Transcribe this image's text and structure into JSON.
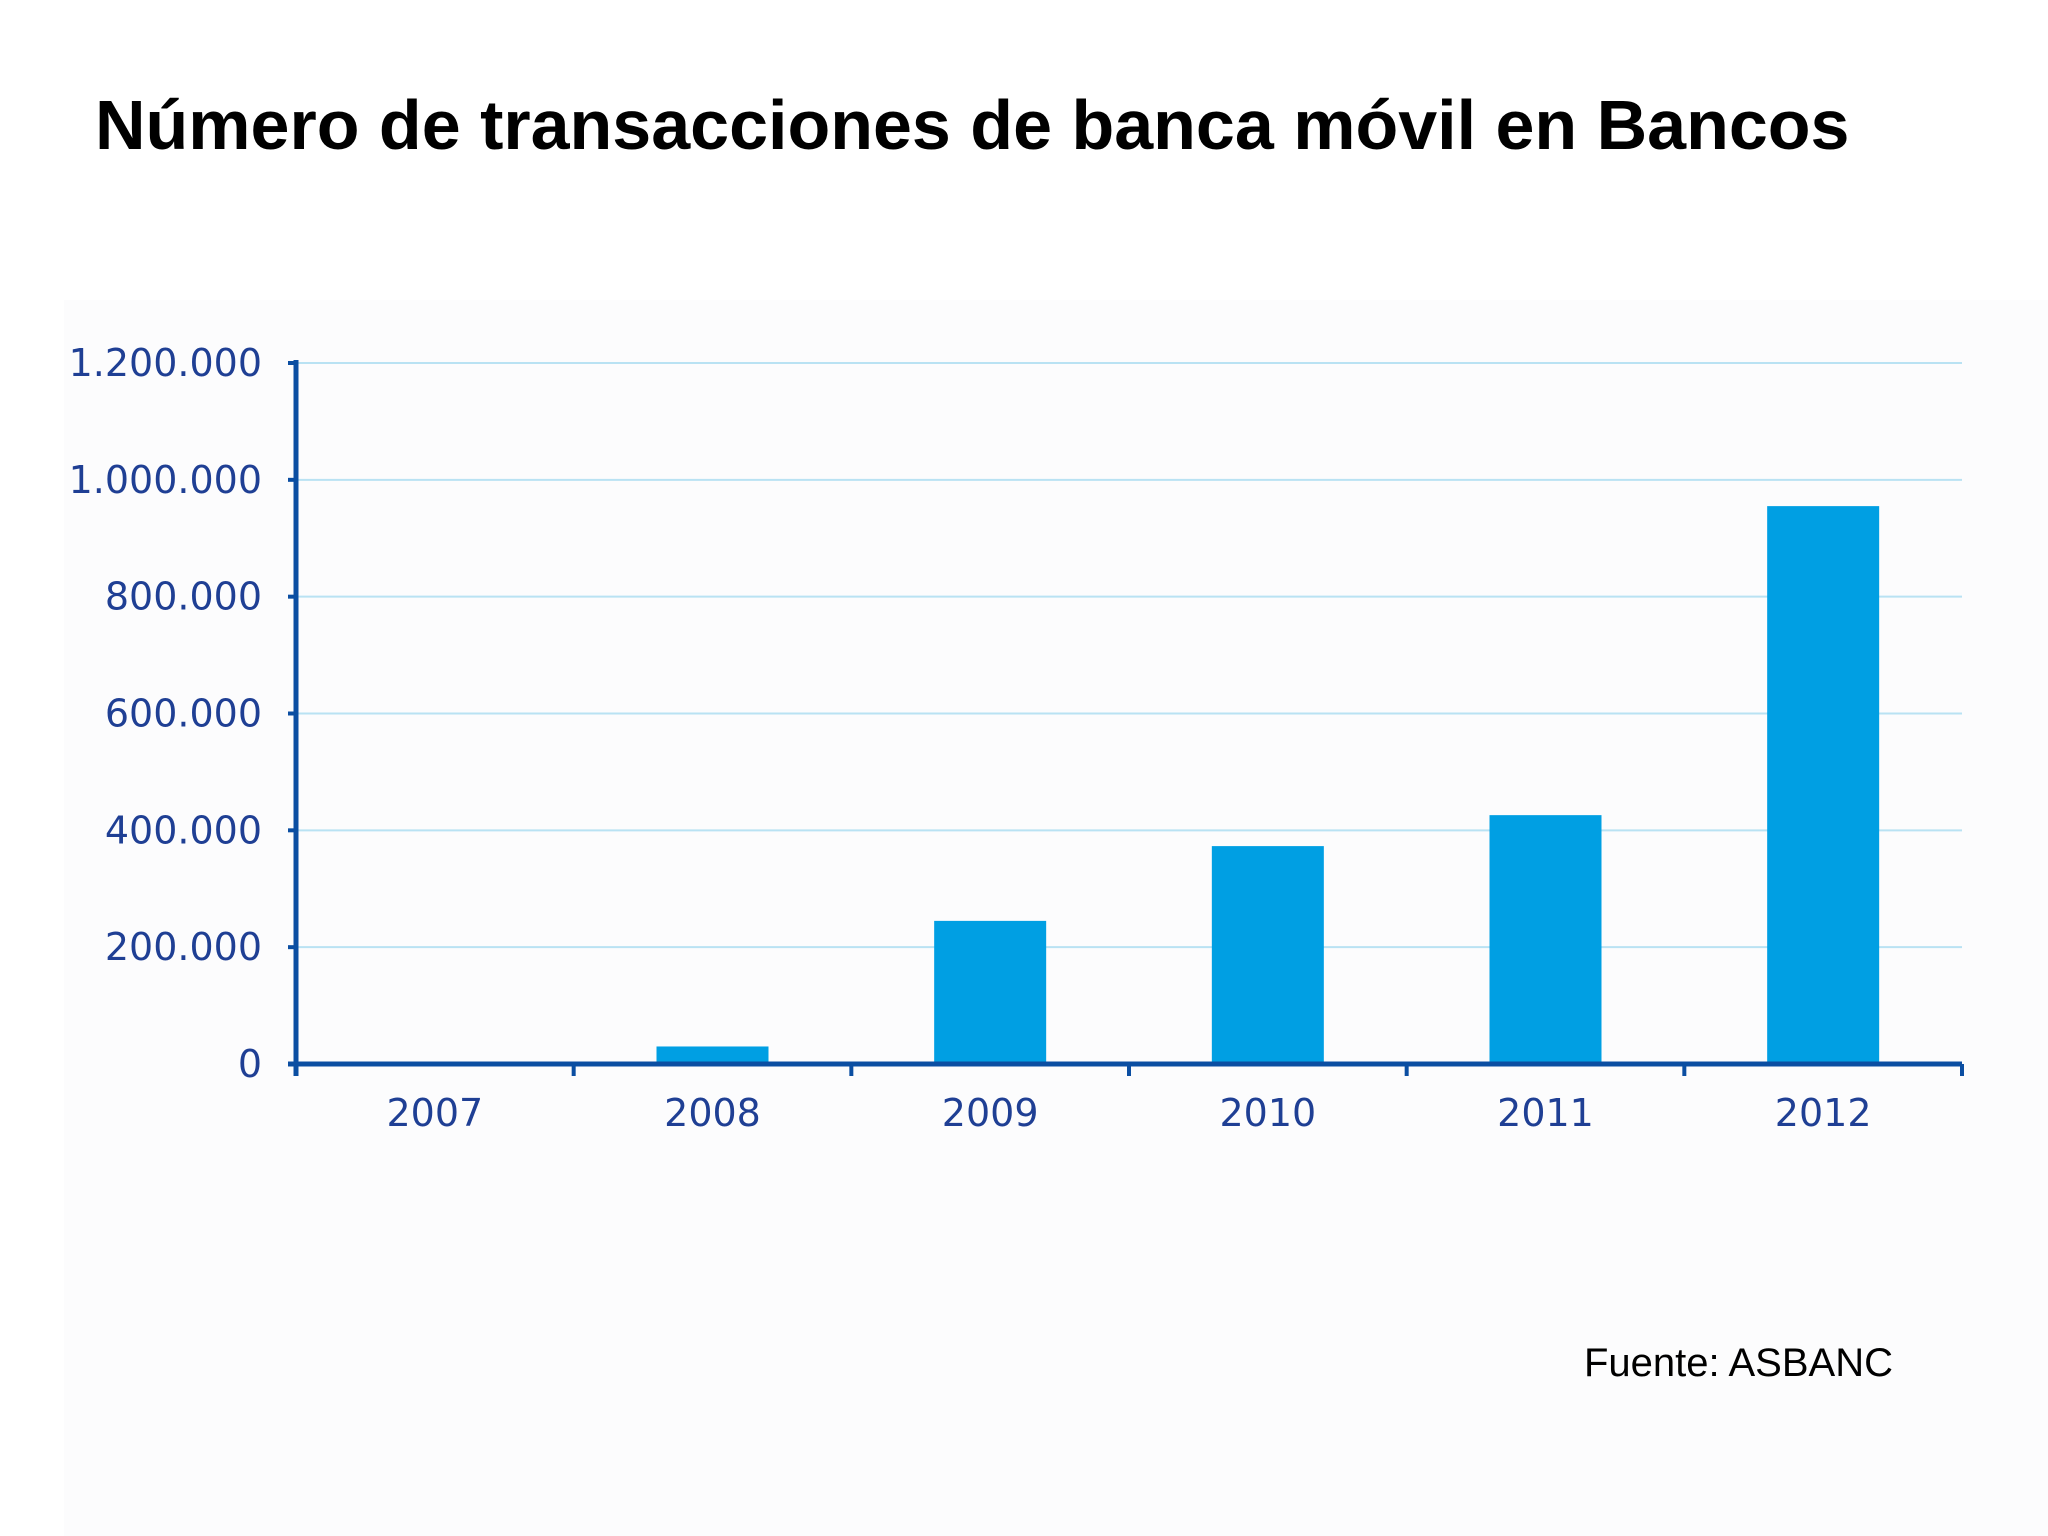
{
  "slide": {
    "title": "Número de transacciones de banca móvil en Bancos",
    "source": "Fuente: ASBANC"
  },
  "colors": {
    "bar": "#009fe3",
    "axis": "#0b4ea2",
    "gridline": "#b9e2f3",
    "tick_label": "#1f3f94"
  },
  "chart_data": {
    "type": "bar",
    "title": "",
    "xlabel": "",
    "ylabel": "",
    "categories": [
      "2007",
      "2008",
      "2009",
      "2010",
      "2011",
      "2012"
    ],
    "series": [
      {
        "values": [
          0,
          30000,
          245000,
          373000,
          426000,
          955000
        ]
      }
    ],
    "ylim": [
      0,
      1200000
    ],
    "yticks": [
      0,
      200000,
      400000,
      600000,
      800000,
      1000000,
      1200000
    ],
    "ytick_labels": [
      "0",
      "200.000",
      "400.000",
      "600.000",
      "800.000",
      "1.000.000",
      "1.200.000"
    ],
    "grid": true,
    "legend": "none"
  }
}
